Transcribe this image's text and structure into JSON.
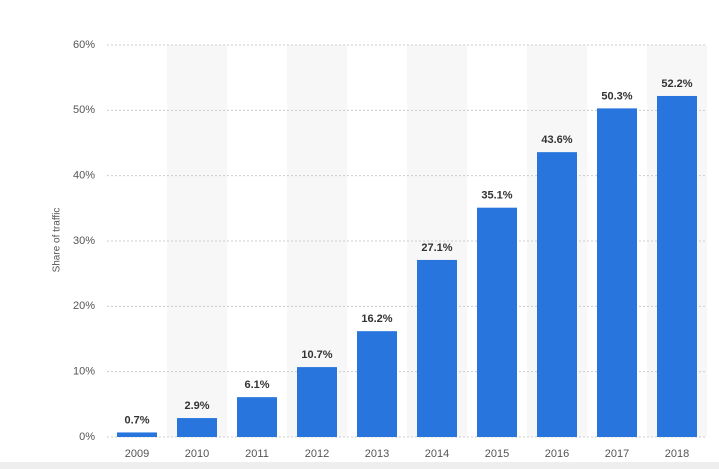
{
  "chart_data": {
    "type": "bar",
    "y_label": "Share of traffic",
    "categories": [
      "2009",
      "2010",
      "2011",
      "2012",
      "2013",
      "2014",
      "2015",
      "2016",
      "2017",
      "2018"
    ],
    "values": [
      0.7,
      2.9,
      6.1,
      10.7,
      16.2,
      27.1,
      35.1,
      43.6,
      50.3,
      52.2
    ],
    "value_labels": [
      "0.7%",
      "2.9%",
      "6.1%",
      "10.7%",
      "16.2%",
      "27.1%",
      "35.1%",
      "43.6%",
      "50.3%",
      "52.2%"
    ],
    "color": "#2876dd",
    "ylim": [
      0,
      60
    ],
    "yticks": [
      {
        "value": 0,
        "label": "0%"
      },
      {
        "value": 10,
        "label": "10%"
      },
      {
        "value": 20,
        "label": "20%"
      },
      {
        "value": 30,
        "label": "30%"
      },
      {
        "value": 40,
        "label": "40%"
      },
      {
        "value": 50,
        "label": "50%"
      },
      {
        "value": 60,
        "label": "60%"
      }
    ],
    "grid": true
  }
}
